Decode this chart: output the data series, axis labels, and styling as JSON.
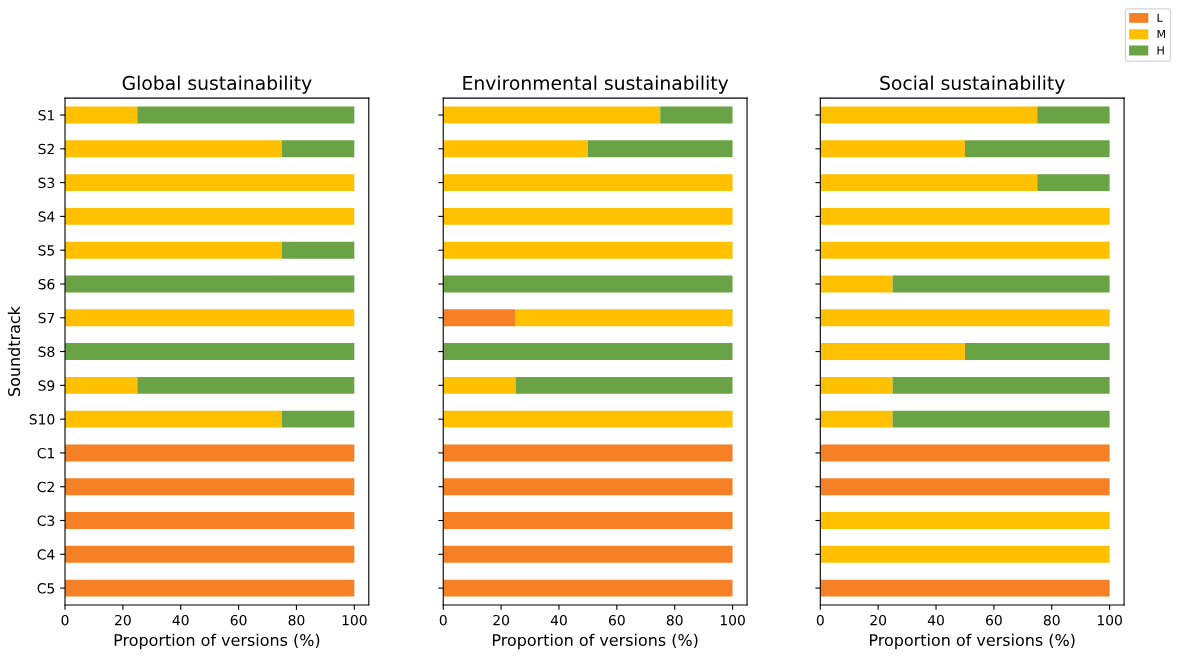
{
  "chart_data": [
    {
      "type": "bar",
      "orientation": "horizontal",
      "stacked": true,
      "title": "Global sustainability",
      "xlabel": "Proportion of versions (%)",
      "ylabel": "Soundtrack",
      "categories": [
        "S1",
        "S2",
        "S3",
        "S4",
        "S5",
        "S6",
        "S7",
        "S8",
        "S9",
        "S10",
        "C1",
        "C2",
        "C3",
        "C4",
        "C5"
      ],
      "xlim": [
        0,
        105
      ],
      "xticks": [
        0,
        20,
        40,
        60,
        80,
        100
      ],
      "grid": false,
      "legend": "top right",
      "series": [
        {
          "name": "L",
          "color": "#f58025",
          "values": [
            0,
            0,
            0,
            0,
            0,
            0,
            0,
            0,
            0,
            0,
            100,
            100,
            100,
            100,
            100
          ]
        },
        {
          "name": "M",
          "color": "#ffc000",
          "values": [
            25,
            75,
            100,
            100,
            75,
            0,
            100,
            0,
            25,
            75,
            0,
            0,
            0,
            0,
            0
          ]
        },
        {
          "name": "H",
          "color": "#6aa346",
          "values": [
            75,
            25,
            0,
            0,
            25,
            100,
            0,
            100,
            75,
            25,
            0,
            0,
            0,
            0,
            0
          ]
        }
      ]
    },
    {
      "type": "bar",
      "orientation": "horizontal",
      "stacked": true,
      "title": "Environmental sustainability",
      "xlabel": "Proportion of versions (%)",
      "categories": [
        null,
        null,
        null,
        null,
        null,
        null,
        null,
        null,
        null,
        null,
        null,
        null,
        null,
        null,
        null
      ],
      "xlim": [
        0,
        105
      ],
      "xticks": [
        0,
        20,
        40,
        60,
        80,
        100
      ],
      "grid": false,
      "tick_labels": "x",
      "series": [
        {
          "name": "L",
          "color": "#f58025",
          "values": [
            0,
            0,
            0,
            0,
            0,
            0,
            25,
            0,
            0,
            0,
            100,
            100,
            100,
            100,
            100
          ]
        },
        {
          "name": "M",
          "color": "#ffc000",
          "values": [
            75,
            50,
            100,
            100,
            100,
            0,
            75,
            0,
            25,
            100,
            0,
            0,
            0,
            0,
            0
          ]
        },
        {
          "name": "H",
          "color": "#6aa346",
          "values": [
            25,
            50,
            0,
            0,
            0,
            100,
            0,
            100,
            75,
            0,
            0,
            0,
            0,
            0,
            0
          ]
        }
      ]
    },
    {
      "type": "bar",
      "orientation": "horizontal",
      "stacked": true,
      "title": "Social sustainability",
      "xlabel": "Proportion of versions (%)",
      "categories": [
        null,
        null,
        null,
        null,
        null,
        null,
        null,
        null,
        null,
        null,
        null,
        null,
        null,
        null,
        null
      ],
      "xlim": [
        0,
        105
      ],
      "xticks": [
        0,
        20,
        40,
        60,
        80,
        100
      ],
      "grid": false,
      "tick_labels": "x",
      "series": [
        {
          "name": "L",
          "color": "#f58025",
          "values": [
            0,
            0,
            0,
            0,
            0,
            0,
            0,
            0,
            0,
            0,
            100,
            100,
            0,
            0,
            100
          ]
        },
        {
          "name": "M",
          "color": "#ffc000",
          "values": [
            75,
            50,
            75,
            100,
            100,
            25,
            100,
            50,
            25,
            25,
            0,
            0,
            100,
            100,
            0
          ]
        },
        {
          "name": "H",
          "color": "#6aa346",
          "values": [
            25,
            50,
            25,
            0,
            0,
            75,
            0,
            50,
            75,
            75,
            0,
            0,
            0,
            0,
            0
          ]
        }
      ]
    }
  ]
}
